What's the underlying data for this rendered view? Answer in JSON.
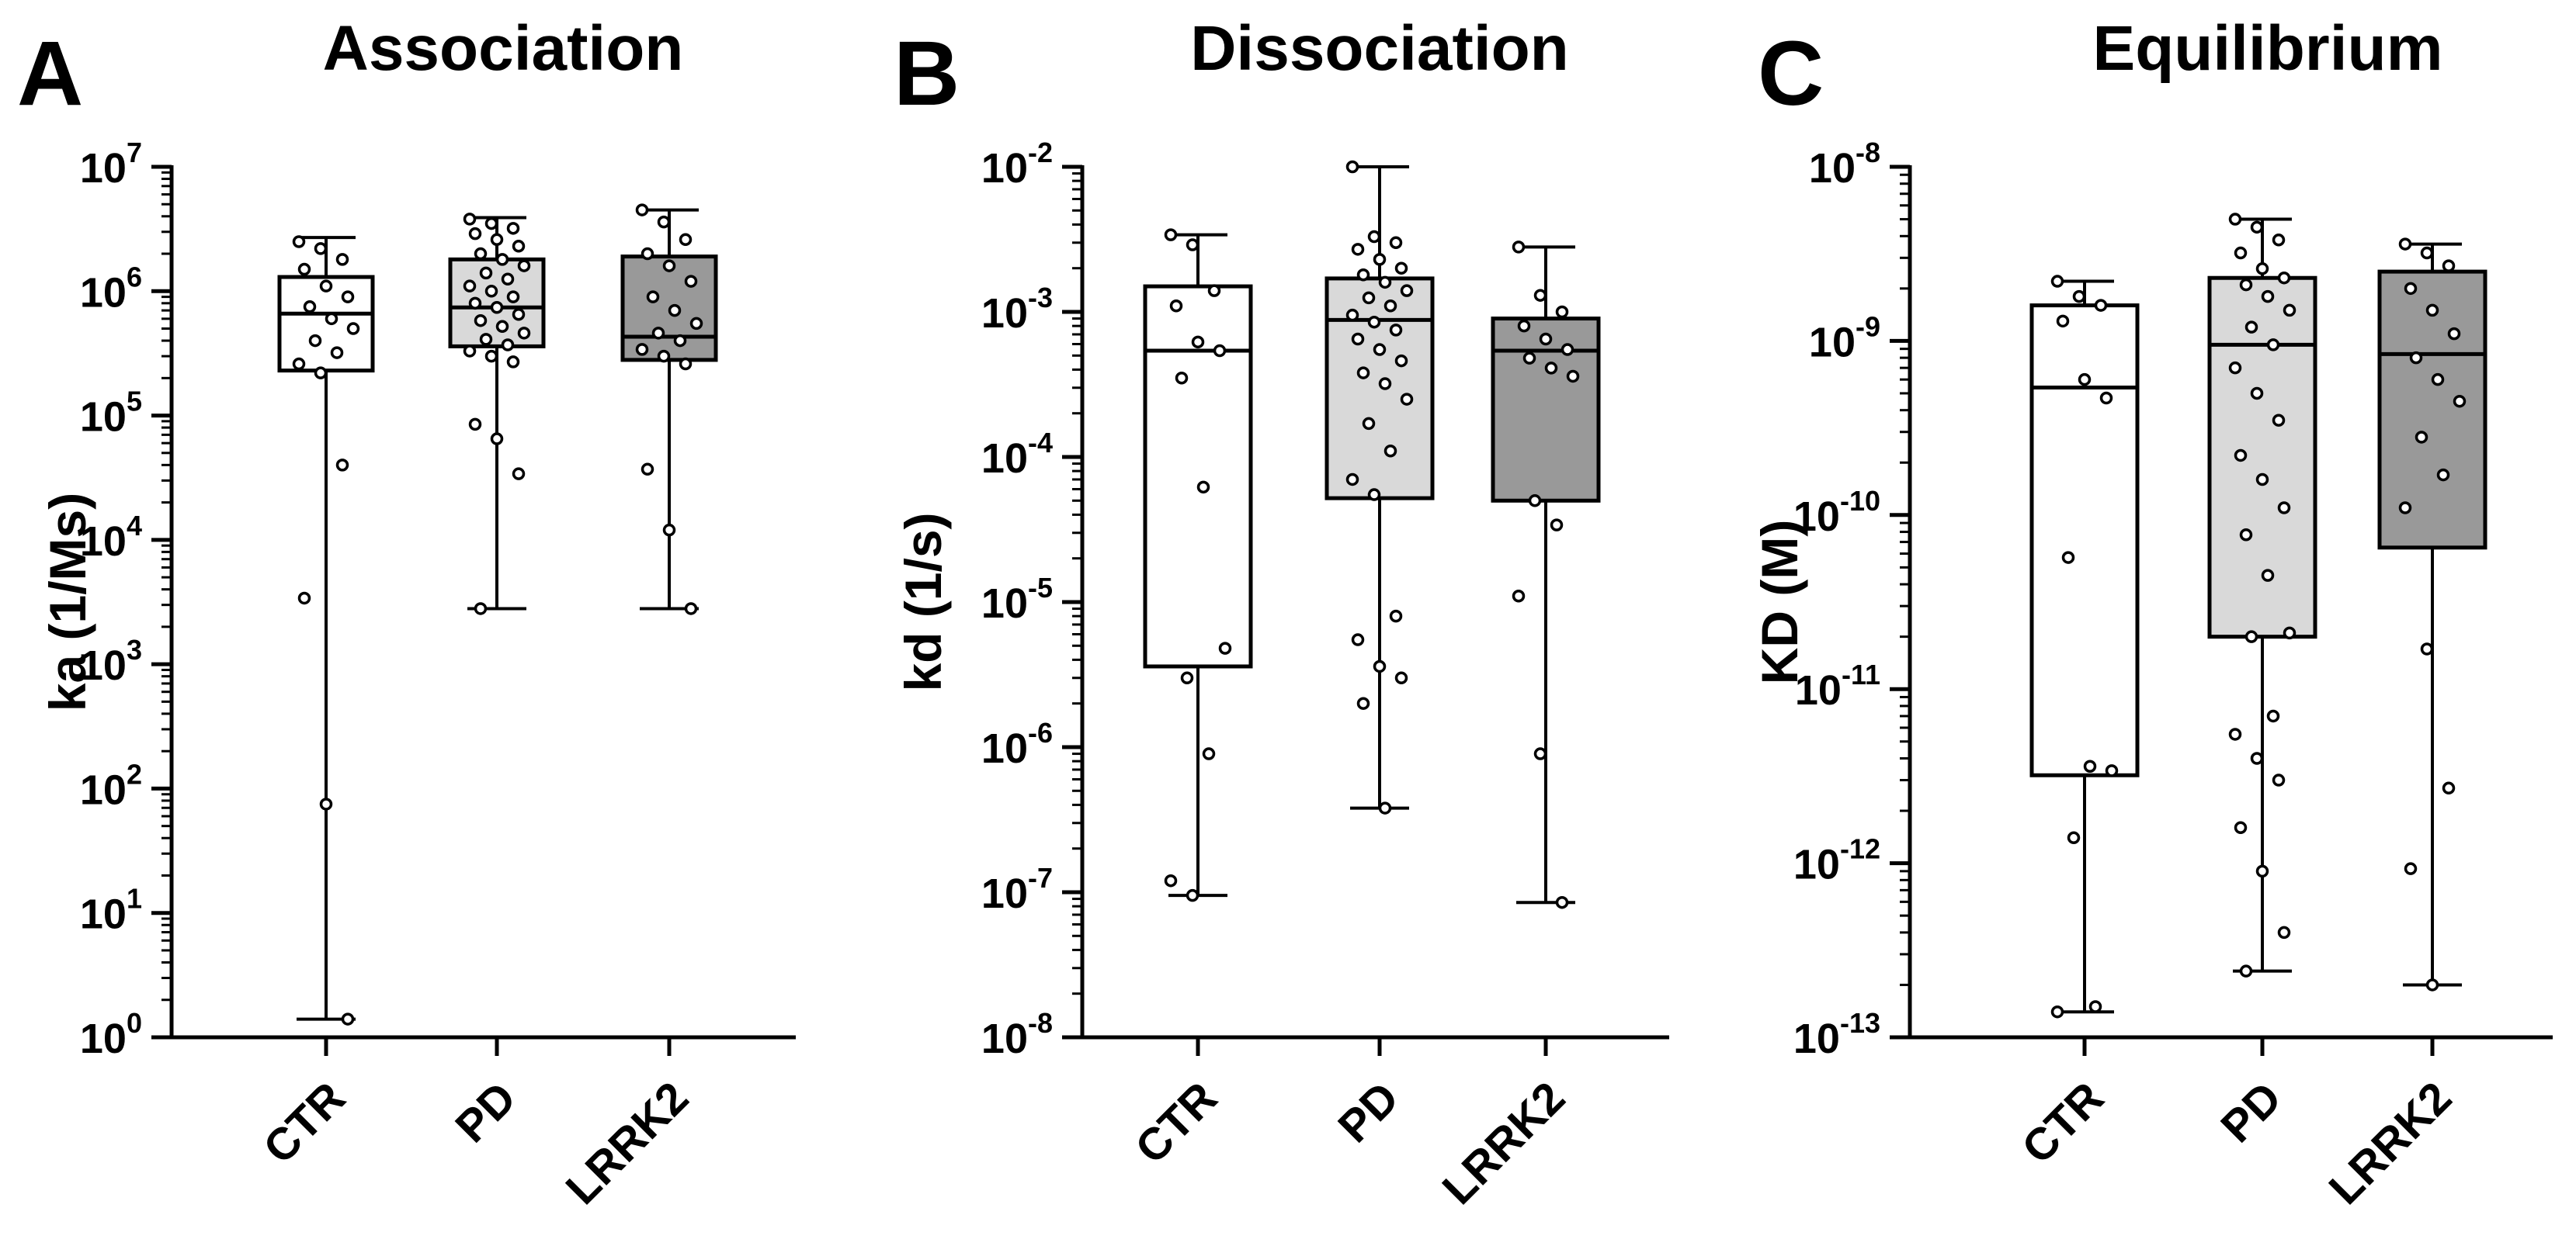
{
  "chart_data": [
    {
      "type": "box",
      "panel_letter": "A",
      "title": "Association",
      "ylabel": "ka (1/Ms)",
      "yscale": "log",
      "ylim_exp": [
        0,
        7
      ],
      "y_ticks": [
        {
          "base": "10",
          "exp": "0",
          "value_exp": 0
        },
        {
          "base": "10",
          "exp": "1",
          "value_exp": 1
        },
        {
          "base": "10",
          "exp": "2",
          "value_exp": 2
        },
        {
          "base": "10",
          "exp": "3",
          "value_exp": 3
        },
        {
          "base": "10",
          "exp": "4",
          "value_exp": 4
        },
        {
          "base": "10",
          "exp": "5",
          "value_exp": 5
        },
        {
          "base": "10",
          "exp": "6",
          "value_exp": 6
        },
        {
          "base": "10",
          "exp": "7",
          "value_exp": 7
        }
      ],
      "categories": [
        "CTR",
        "PD",
        "LRRK2"
      ],
      "boxes": [
        {
          "group": "CTR",
          "fill": "#ffffff",
          "min": 1.4,
          "q1": 230000.0,
          "median": 660000.0,
          "q3": 1300000.0,
          "max": 2700000.0,
          "points": [
            2500000.0,
            2200000.0,
            1800000.0,
            1500000.0,
            1100000.0,
            900000.0,
            750000.0,
            600000.0,
            500000.0,
            400000.0,
            320000.0,
            260000.0,
            220000.0,
            40000.0,
            3400.0,
            75,
            1.4
          ]
        },
        {
          "group": "PD",
          "fill": "#d9d9d9",
          "min": 2800.0,
          "q1": 360000.0,
          "median": 740000.0,
          "q3": 1800000.0,
          "max": 3900000.0,
          "points": [
            3800000.0,
            3500000.0,
            3200000.0,
            2900000.0,
            2600000.0,
            2300000.0,
            2000000.0,
            1800000.0,
            1600000.0,
            1400000.0,
            1250000.0,
            1100000.0,
            1000000.0,
            900000.0,
            800000.0,
            740000.0,
            650000.0,
            580000.0,
            520000.0,
            460000.0,
            410000.0,
            370000.0,
            330000.0,
            300000.0,
            270000.0,
            85000.0,
            65000.0,
            34000.0,
            2800.0
          ]
        },
        {
          "group": "LRRK2",
          "fill": "#999999",
          "min": 2800.0,
          "q1": 280000.0,
          "median": 430000.0,
          "q3": 1900000.0,
          "max": 4500000.0,
          "points": [
            4500000.0,
            3600000.0,
            2600000.0,
            2000000.0,
            1600000.0,
            1200000.0,
            900000.0,
            700000.0,
            550000.0,
            460000.0,
            400000.0,
            340000.0,
            300000.0,
            260000.0,
            37000.0,
            12000.0,
            2800.0
          ]
        }
      ]
    },
    {
      "type": "box",
      "panel_letter": "B",
      "title": "Dissociation",
      "ylabel": "kd (1/s)",
      "yscale": "log",
      "ylim_exp": [
        -8,
        -2
      ],
      "y_ticks": [
        {
          "base": "10",
          "exp": "-2",
          "value_exp": -2
        },
        {
          "base": "10",
          "exp": "-3",
          "value_exp": -3
        },
        {
          "base": "10",
          "exp": "-4",
          "value_exp": -4
        },
        {
          "base": "10",
          "exp": "-5",
          "value_exp": -5
        },
        {
          "base": "10",
          "exp": "-6",
          "value_exp": -6
        },
        {
          "base": "10",
          "exp": "-7",
          "value_exp": -7
        },
        {
          "base": "10",
          "exp": "-8",
          "value_exp": -8
        }
      ],
      "categories": [
        "CTR",
        "PD",
        "LRRK2"
      ],
      "boxes": [
        {
          "group": "CTR",
          "fill": "#ffffff",
          "min": 9.5e-08,
          "q1": 3.6e-06,
          "median": 0.00054,
          "q3": 0.0015,
          "max": 0.0034,
          "points": [
            0.0034,
            0.0029,
            0.0014,
            0.0011,
            0.00062,
            0.00054,
            0.00035,
            6.2e-05,
            4.8e-06,
            3e-06,
            9e-07,
            1.2e-07,
            9.5e-08
          ]
        },
        {
          "group": "PD",
          "fill": "#d9d9d9",
          "min": 3.8e-07,
          "q1": 5.2e-05,
          "median": 0.00088,
          "q3": 0.0017,
          "max": 0.01,
          "points": [
            0.01,
            0.0033,
            0.003,
            0.0027,
            0.0023,
            0.002,
            0.0018,
            0.0016,
            0.0014,
            0.00125,
            0.0011,
            0.00095,
            0.00085,
            0.00075,
            0.00065,
            0.00055,
            0.00046,
            0.00038,
            0.00032,
            0.00025,
            0.00017,
            0.00011,
            7e-05,
            5.5e-05,
            8e-06,
            5.5e-06,
            3.6e-06,
            3e-06,
            2e-06,
            3.8e-07
          ]
        },
        {
          "group": "LRRK2",
          "fill": "#999999",
          "min": 8.5e-08,
          "q1": 5e-05,
          "median": 0.00054,
          "q3": 0.0009,
          "max": 0.0028,
          "points": [
            0.0028,
            0.0013,
            0.001,
            0.0008,
            0.00065,
            0.00055,
            0.00048,
            0.00041,
            0.00036,
            5e-05,
            3.4e-05,
            1.1e-05,
            9e-07,
            8.5e-08
          ]
        }
      ]
    },
    {
      "type": "box",
      "panel_letter": "C",
      "title": "Equilibrium",
      "ylabel": "KD (M)",
      "yscale": "log",
      "ylim_exp": [
        -13,
        -8
      ],
      "y_ticks": [
        {
          "base": "10",
          "exp": "-8",
          "value_exp": -8
        },
        {
          "base": "10",
          "exp": "-9",
          "value_exp": -9
        },
        {
          "base": "10",
          "exp": "-10",
          "value_exp": -10
        },
        {
          "base": "10",
          "exp": "-11",
          "value_exp": -11
        },
        {
          "base": "10",
          "exp": "-12",
          "value_exp": -12
        },
        {
          "base": "10",
          "exp": "-13",
          "value_exp": -13
        }
      ],
      "categories": [
        "CTR",
        "PD",
        "LRRK2"
      ],
      "boxes": [
        {
          "group": "CTR",
          "fill": "#ffffff",
          "min": 1.4e-13,
          "q1": 3.2e-12,
          "median": 5.4e-10,
          "q3": 1.6e-09,
          "max": 2.2e-09,
          "points": [
            2.2e-09,
            1.8e-09,
            1.6e-09,
            1.3e-09,
            6e-10,
            4.7e-10,
            5.7e-11,
            3.6e-12,
            3.4e-12,
            1.4e-12,
            1.5e-13,
            1.4e-13
          ]
        },
        {
          "group": "PD",
          "fill": "#d9d9d9",
          "min": 2.4e-13,
          "q1": 2e-11,
          "median": 9.5e-10,
          "q3": 2.3e-09,
          "max": 5e-09,
          "points": [
            5e-09,
            4.5e-09,
            3.8e-09,
            3.2e-09,
            2.6e-09,
            2.3e-09,
            2.1e-09,
            1.8e-09,
            1.5e-09,
            1.2e-09,
            9.5e-10,
            7e-10,
            5e-10,
            3.5e-10,
            2.2e-10,
            1.6e-10,
            1.1e-10,
            7.7e-11,
            4.5e-11,
            2.1e-11,
            2e-11,
            7e-12,
            5.5e-12,
            4e-12,
            3e-12,
            1.6e-12,
            9e-13,
            4e-13,
            2.4e-13
          ]
        },
        {
          "group": "LRRK2",
          "fill": "#999999",
          "min": 2e-13,
          "q1": 6.5e-11,
          "median": 8.4e-10,
          "q3": 2.5e-09,
          "max": 3.6e-09,
          "points": [
            3.6e-09,
            3.2e-09,
            2.7e-09,
            2e-09,
            1.5e-09,
            1.1e-09,
            8e-10,
            6e-10,
            4.5e-10,
            2.8e-10,
            1.7e-10,
            1.1e-10,
            1.7e-11,
            2.7e-12,
            9.3e-13,
            2e-13
          ]
        }
      ]
    }
  ]
}
